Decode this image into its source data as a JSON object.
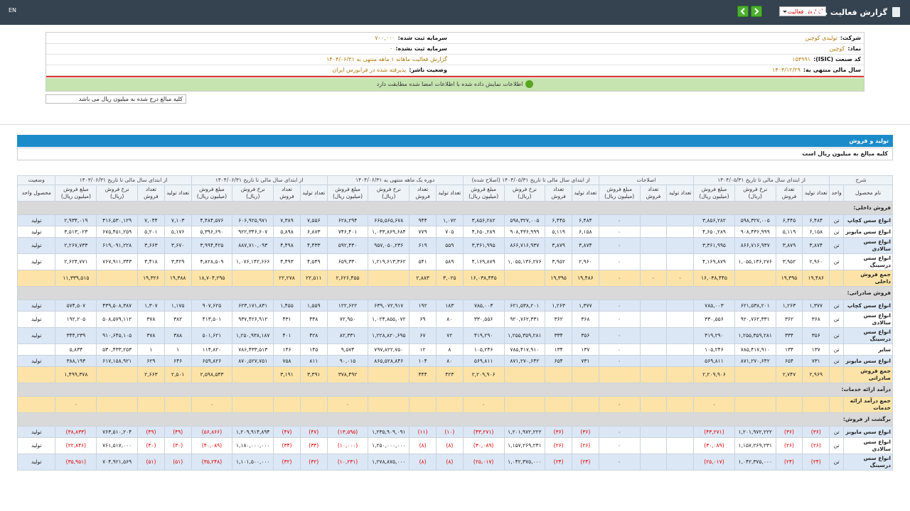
{
  "topbar": {
    "lang": "EN",
    "title": "گزارش فعالیت ماهانه",
    "select": "گزارش فعالیت"
  },
  "info": {
    "rows": [
      [
        {
          "label": "شرکت:",
          "value": "تولیدی کوچین"
        },
        {
          "label": "سرمایه ثبت شده:",
          "value": "۷۰۰,۰۰۰"
        }
      ],
      [
        {
          "label": "نماد:",
          "value": "کوچین"
        },
        {
          "label": "سرمایه ثبت نشده:",
          "value": "۰"
        }
      ],
      [
        {
          "label": "کد صنعت (ISIC):",
          "value": "۱۵۴۹۹۱"
        },
        {
          "value": "گزارش فعالیت ماهانه ۱ ماهه منتهی به ۱۴۰۴/۰۶/۳۱"
        }
      ],
      [
        {
          "label": "سال مالی منتهی به:",
          "value": "۱۴۰۴/۱۲/۲۹"
        },
        {
          "label": "وضعیت ناشر:",
          "value": "پذیرفته شده در فرابورس ایران"
        }
      ]
    ],
    "notice": "اطلاعات نمایش داده شده با اطلاعات امضا شده مطابقت دارد",
    "unit_note": "کلیه مبالغ درج شده به میلیون ریال می باشد"
  },
  "section": {
    "title": "تولید و فروش",
    "note": "کلیه مبالغ به میلیون ریال است"
  },
  "table": {
    "header_groups": [
      {
        "label": "شرح",
        "columns": [
          "نام محصول",
          "واحد"
        ]
      },
      {
        "label": "از ابتدای سال مالی تا تاریخ ۱۴۰۴/۰۵/۳۱",
        "columns": [
          "تعداد تولید",
          "تعداد فروش",
          "نرخ فروش (ریال)",
          "مبلغ فروش (میلیون ریال)"
        ]
      },
      {
        "label": "اصلاحات",
        "columns": [
          "تعداد تولید",
          "تعداد فروش",
          "مبلغ فروش (میلیون ریال)"
        ]
      },
      {
        "label": "از ابتدای سال مالی تا تاریخ ۱۴۰۴/۰۵/۳۱ (اصلاح شده)",
        "columns": [
          "تعداد تولید",
          "تعداد فروش",
          "نرخ فروش (ریال)",
          "مبلغ فروش (میلیون ریال)"
        ]
      },
      {
        "label": "دوره یک ماهه منتهی به ۱۴۰۴/۰۶/۳۱",
        "columns": [
          "تعداد تولید",
          "تعداد فروش",
          "نرخ فروش (ریال)",
          "مبلغ فروش (میلیون ریال)"
        ]
      },
      {
        "label": "از ابتدای سال مالی تا تاریخ ۱۴۰۴/۰۶/۳۱",
        "columns": [
          "تعداد تولید",
          "تعداد فروش",
          "نرخ فروش (ریال)",
          "مبلغ فروش (میلیون ریال)"
        ]
      },
      {
        "label": "از ابتدای سال مالی تا تاریخ ۱۴۰۳/۰۶/۳۱",
        "columns": [
          "تعداد تولید",
          "تعداد فروش",
          "نرخ فروش (ریال)",
          "مبلغ فروش (میلیون ریال)"
        ]
      },
      {
        "label": "وضعیت",
        "columns": [
          "محصول واحد"
        ]
      }
    ],
    "sections": [
      {
        "title": "فروش داخلی:",
        "rows": [
          [
            "انواع سس کچاپ",
            "تن",
            "۶,۴۸۴",
            "۶,۴۴۵",
            "۵۹۸,۳۲۷,۰۰۵",
            "۳,۸۵۶,۲۸۲",
            null,
            null,
            "۰",
            "۶,۴۸۴",
            "۶,۴۴۵",
            "۵۹۸,۳۲۷,۰۰۵",
            "۳,۸۵۶,۲۸۲",
            "۱,۰۷۲",
            "۹۴۴",
            "۶۶۵,۵۶۵,۶۷۸",
            "۶۲۸,۲۹۴",
            "۷,۵۵۶",
            "۷,۳۸۹",
            "۶۰۶,۹۲۵,۹۷۱",
            "۴,۴۸۴,۵۷۶",
            "۷,۱۰۳",
            "۷,۰۴۴",
            "۴۱۶,۵۳۰,۱۲۹",
            "۲,۹۳۴,۰۱۹",
            "تولید"
          ],
          [
            "انواع سس مایونز",
            "تن",
            "۶,۱۵۸",
            "۵,۱۱۹",
            "۹۰۸,۴۳۶,۹۹۹",
            "۴,۶۵۰,۲۸۹",
            null,
            null,
            "۰",
            "۶,۱۵۸",
            "۵,۱۱۹",
            "۹۰۸,۴۳۶,۹۹۹",
            "۴,۶۵۰,۲۸۹",
            "۷۰۵",
            "۷۷۹",
            "۱,۰۳۳,۸۶۹,۶۸۴",
            "۷۴۶,۴۰۱",
            "۶,۸۷۳",
            "۵,۸۹۸",
            "۹۲۲,۳۴۶,۶۰۷",
            "۵,۳۹۶,۶۹۰",
            "۵,۱۷۶",
            "۵,۲۰۱",
            "۶۷۵,۴۵۱,۲۵۹",
            "۳,۵۱۳,۰۲۳",
            "تولید"
          ],
          [
            "انواع سس سالادی",
            "تن",
            "۳,۸۷۴",
            "۳,۸۷۹",
            "۸۶۶,۷۱۶,۹۳۷",
            "۳,۳۶۱,۹۹۵",
            null,
            null,
            "۰",
            "۳,۸۷۴",
            "۳,۸۷۹",
            "۸۶۶,۷۱۶,۹۳۷",
            "۳,۳۶۱,۹۹۵",
            "۵۵۹",
            "۶۱۹",
            "۹۵۷,۰۵۰,۲۳۶",
            "۵۹۲,۴۳۰",
            "۴,۴۳۳",
            "۴,۴۹۸",
            "۸۸۷,۷۱۰,۰۹۳",
            "۳,۹۹۴,۴۲۵",
            "۳,۶۷۰",
            "۳,۶۶۳",
            "۶۱۹,۰۹۱,۲۲۸",
            "۲,۲۶۷,۷۳۳",
            "تولید"
          ],
          [
            "انواع سس درسینگ",
            "تن",
            "۲,۹۶۰",
            "۳,۹۵۲",
            "۱,۰۵۵,۱۳۶,۲۷۶",
            "۴,۱۶۹,۸۷۹",
            null,
            null,
            "۰",
            "۲,۹۶۰",
            "۳,۹۵۲",
            "۱,۰۵۵,۱۳۶,۲۷۶",
            "۴,۱۶۹,۸۷۹",
            "۵۸۹",
            "۵۴۱",
            "۱,۲۱۹,۶۱۳,۳۶۲",
            "۶۵۹,۳۳۰",
            "۴,۵۴۹",
            "۴,۴۹۳",
            "۱,۰۷۶,۱۴۲,۶۶۶",
            "۴,۸۲۸,۵۰۹",
            "۳,۴۲۹",
            "۳,۴۱۸",
            "۷۶۷,۹۱۱,۳۴۳",
            "۲,۶۲۴,۷۷۱",
            "تولید"
          ]
        ],
        "total": [
          "جمع فروش داخلی",
          null,
          "۱۹,۴۸۶",
          "۱۹,۳۹۵",
          null,
          "۱۶,۰۳۸,۴۴۵",
          "۰",
          "۰",
          "۰",
          "۱۹,۴۸۶",
          "۱۹,۳۹۵",
          null,
          "۱۶,۰۳۸,۴۴۵",
          "۳,۰۲۵",
          "۲,۸۸۳",
          null,
          "۲,۶۲۶,۴۵۵",
          "۲۲,۵۱۱",
          "۲۲,۲۷۸",
          null,
          "۱۸,۷۰۴,۲۹۵",
          "۱۹,۳۸۸",
          "۱۹,۳۲۶",
          null,
          "۱۱,۳۳۹,۵۱۵",
          null
        ]
      },
      {
        "title": "فروش صادراتی:",
        "rows": [
          [
            "انواع سس کچاپ",
            "تن",
            "۱,۳۷۷",
            "۱,۲۶۳",
            "۶۲۱,۵۳۸,۲۰۱",
            "۷۸۵,۰۰۳",
            null,
            null,
            "۰",
            "۱,۳۷۷",
            "۱,۲۶۳",
            "۶۲۱,۵۳۸,۲۰۱",
            "۷۸۵,۰۰۳",
            "۱۸۳",
            "۱۹۲",
            "۶۳۹,۰۷۲,۹۱۷",
            "۱۲۲,۶۲۲",
            "۱,۵۵۹",
            "۱,۴۵۵",
            "۶۲۳,۱۷۱,۸۳۱",
            "۹۰۷,۶۲۵",
            "۱,۱۷۵",
            "۱,۳۰۷",
            "۴۳۹,۵۰۸,۳۸۷",
            "۵۷۴,۵۰۷",
            "تولید"
          ],
          [
            "انواع سس سالادی",
            "تن",
            "۳۶۸",
            "۳۶۲",
            "۹۲۰,۷۶۲,۳۳۱",
            "۳۳۰,۵۵۶",
            null,
            null,
            "۰",
            "۳۶۸",
            "۳۶۲",
            "۹۲۰,۷۶۲,۳۳۱",
            "۳۳۰,۵۵۶",
            "۸۰",
            "۶۹",
            "۱,۰۲۴,۸۵۵,۰۷۲",
            "۷۲,۹۵۰",
            "۴۴۸",
            "۴۳۱",
            "۹۳۷,۴۲۶,۹۱۲",
            "۴۱۳,۵۰۱",
            "۳۸۲",
            "۳۷۸",
            "۵۰۸,۵۷۹,۱۱۲",
            "۱۹۲,۲۰۵",
            "تولید"
          ],
          [
            "انواع سس درسینگ",
            "تن",
            "۳۵۶",
            "۳۳۴",
            "۱,۲۵۵,۳۵۹,۲۸۱",
            "۴۱۹,۲۹۰",
            null,
            null,
            "۰",
            "۳۵۶",
            "۳۳۴",
            "۱,۲۵۵,۳۵۹,۲۸۱",
            "۴۱۹,۲۹۰",
            "۷۲",
            "۶۷",
            "۱,۲۲۸,۸۲۰,۶۹۵",
            "۸۲,۳۳۱",
            "۴۲۸",
            "۴۰۱",
            "۱,۲۵۰,۹۳۸,۱۸۷",
            "۵۰۱,۶۲۱",
            "۳۸۸",
            "۳۷۸",
            "۹۱۰,۶۴۵,۱۰۵",
            "۳۴۴,۲۳۹",
            "تولید"
          ],
          [
            "سایر",
            "تن",
            "۱۳۷",
            "۱۳۴",
            "۷۸۵,۴۱۷,۹۱۰",
            "۱۰۵,۲۴۶",
            null,
            null,
            "۰",
            "۱۳۷",
            "۱۳۴",
            "۷۸۵,۴۱۷,۹۱۰",
            "۱۰۵,۲۴۶",
            "۸",
            "۱۲",
            "۷۹۷,۸۲۲,۷۵۰",
            "۹,۵۷۴",
            "۱۴۵",
            "۱۴۶",
            "۷۸۶,۴۳۳,۵۱۳",
            "۱۱۴,۸۲۰",
            "۱",
            "۱",
            "۵۳۰,۴۳۳,۲۵۳",
            "۵,۸۳۴",
            null
          ],
          [
            "انواع سس مایونز",
            "تن",
            "۷۳۱",
            "۶۵۴",
            "۸۷۱,۲۷۰,۶۴۲",
            "۵۶۹,۸۱۱",
            null,
            null,
            "۰",
            "۷۳۱",
            "۶۵۴",
            "۸۷۱,۲۷۰,۶۴۲",
            "۵۶۹,۸۱۱",
            "۸۰",
            "۱۰۴",
            "۸۶۵,۵۲۸,۸۴۶",
            "۹۰,۰۱۵",
            "۸۱۱",
            "۷۵۸",
            "۸۷۰,۵۲۷,۷۵۱",
            "۶۵۹,۸۲۶",
            "۶۴۶",
            "۶۲۹",
            "۶۱۷,۱۵۸,۹۲۱",
            "۳۸۸,۱۹۳",
            "تولید"
          ]
        ],
        "total": [
          "جمع فروش صادراتی",
          null,
          "۲,۹۶۹",
          "۲,۷۴۷",
          null,
          "۲,۲۰۹,۹۰۶",
          null,
          null,
          null,
          null,
          null,
          null,
          "۲,۲۰۹,۹۰۶",
          "۴۲۳",
          "۴۴۴",
          null,
          "۳۷۸,۴۹۲",
          "۳,۳۹۱",
          "۳,۱۹۱",
          null,
          "۲,۵۹۸,۵۴۳",
          "۲,۵۰۱",
          "۲,۶۶۳",
          null,
          "۱,۴۹۹,۳۷۸",
          null
        ]
      },
      {
        "title": "درآمد ارائه خدمات:",
        "rows": [],
        "total": [
          "جمع درآمد ارائه خدمات",
          null,
          null,
          null,
          null,
          "۰",
          null,
          null,
          "۰",
          null,
          null,
          null,
          "۰",
          null,
          null,
          null,
          "۰",
          null,
          null,
          null,
          "۰",
          null,
          null,
          null,
          "۰",
          null
        ]
      },
      {
        "title": "برگشت از فروش:",
        "rows": [
          [
            "انواع سس مایونز",
            "تن",
            "(۳۶)",
            "(۳۶)",
            "۱,۲۰۱,۹۷۲,۲۲۲",
            "(۴۳,۲۷۱)",
            null,
            null,
            "۰",
            "(۳۶)",
            "(۳۶)",
            "۱,۲۰۱,۹۷۲,۲۲۲",
            "(۴۳,۲۷۱)",
            "(۱۰)",
            "(۱۱)",
            "۱,۲۳۵,۹۰۹,۰۹۱",
            "(۱۳,۵۹۵)",
            "(۴۷)",
            "(۴۷)",
            "۱,۲۰۹,۹۱۴,۸۹۴",
            "(۵۶,۸۶۶)",
            "(۴۹)",
            "(۴۹)",
            "۷۶۳,۵۱۰,۲۰۴",
            "(۳۸,۸۳۳)",
            "تولید"
          ],
          [
            "انواع سس سالادی",
            "تن",
            "(۲۶)",
            "(۲۶)",
            "۱,۱۵۷,۲۶۹,۲۳۱",
            "(۳۰,۰۸۹)",
            null,
            null,
            "۰",
            "(۲۶)",
            "(۲۶)",
            "۱,۱۵۷,۲۶۹,۲۳۱",
            "(۳۰,۰۸۹)",
            "(۸)",
            "(۸)",
            "۱,۲۵۰,۰۰۰,۰۰۰",
            "(۱۰,۰۰۰)",
            "(۳۴)",
            "(۳۴)",
            "۱,۱۸۰,۰۰۰,۰۰۰",
            "(۴۰,۰۸۹)",
            "(۳۰)",
            "(۳۰)",
            "۷۶۱,۵۱۷,۰۰۰",
            "(۲۲,۸۴۶)",
            "تولید"
          ],
          [
            "انواع سس درسینگ",
            "تن",
            "(۲۴)",
            "(۲۴)",
            "۱,۰۴۲,۳۷۵,۰۰۰",
            "(۲۵,۰۱۷)",
            null,
            null,
            "۰",
            "(۲۴)",
            "(۲۴)",
            "۱,۰۴۲,۳۷۵,۰۰۰",
            "(۲۵,۰۱۷)",
            "(۸)",
            "(۸)",
            "۱,۲۷۸,۸۷۵,۰۰۰",
            "(۱۰,۲۳۱)",
            "(۳۲)",
            "(۳۲)",
            "۱,۱۰۱,۵۰۰,۰۰۰",
            "(۳۵,۲۴۸)",
            "(۵۱)",
            "(۵۱)",
            "۷۰۴,۹۲۱,۵۶۹",
            "(۳۵,۹۵۱)",
            "تولید"
          ]
        ]
      }
    ]
  }
}
